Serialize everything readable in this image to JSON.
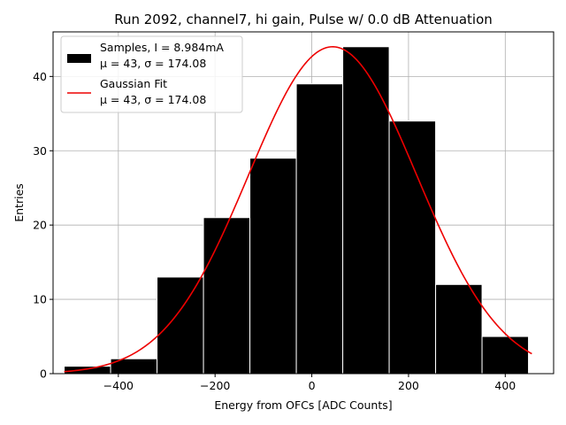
{
  "chart_data": {
    "type": "histogram",
    "title": "Run 2092, channel7, hi gain, Pulse w/ 0.0 dB Attenuation",
    "xlabel": "Energy from OFCs [ADC Counts]",
    "ylabel": "Entries",
    "xlim": [
      -535,
      500
    ],
    "ylim": [
      0,
      46
    ],
    "xticks": [
      -400,
      -200,
      0,
      200,
      400
    ],
    "yticks": [
      0,
      10,
      20,
      30,
      40
    ],
    "xtick_labels": [
      "−400",
      "−200",
      "0",
      "200",
      "400"
    ],
    "ytick_labels": [
      "0",
      "10",
      "20",
      "30",
      "40"
    ],
    "grid": true,
    "bins": [
      {
        "x0": -512,
        "x1": -416,
        "count": 1
      },
      {
        "x0": -416,
        "x1": -320,
        "count": 2
      },
      {
        "x0": -320,
        "x1": -224,
        "count": 13
      },
      {
        "x0": -224,
        "x1": -128,
        "count": 21
      },
      {
        "x0": -128,
        "x1": -32,
        "count": 29
      },
      {
        "x0": -32,
        "x1": 64,
        "count": 39
      },
      {
        "x0": 64,
        "x1": 160,
        "count": 44
      },
      {
        "x0": 160,
        "x1": 256,
        "count": 34
      },
      {
        "x0": 256,
        "x1": 352,
        "count": 12
      },
      {
        "x0": 352,
        "x1": 448,
        "count": 5
      }
    ],
    "fit": {
      "type": "gaussian",
      "mu": 43,
      "sigma": 174.08,
      "amplitude": 44,
      "x_range": [
        -512,
        455
      ],
      "color": "#ee0000"
    },
    "bar_color": "#000000",
    "bar_edge_color": "#ffffff",
    "legend": {
      "position": "top-left",
      "entries": [
        {
          "kind": "bar",
          "line1": "Samples, I = 8.984mA",
          "line2": "μ = 43, σ = 174.08"
        },
        {
          "kind": "line",
          "line1": "Gaussian Fit",
          "line2": "μ = 43, σ = 174.08"
        }
      ]
    }
  }
}
